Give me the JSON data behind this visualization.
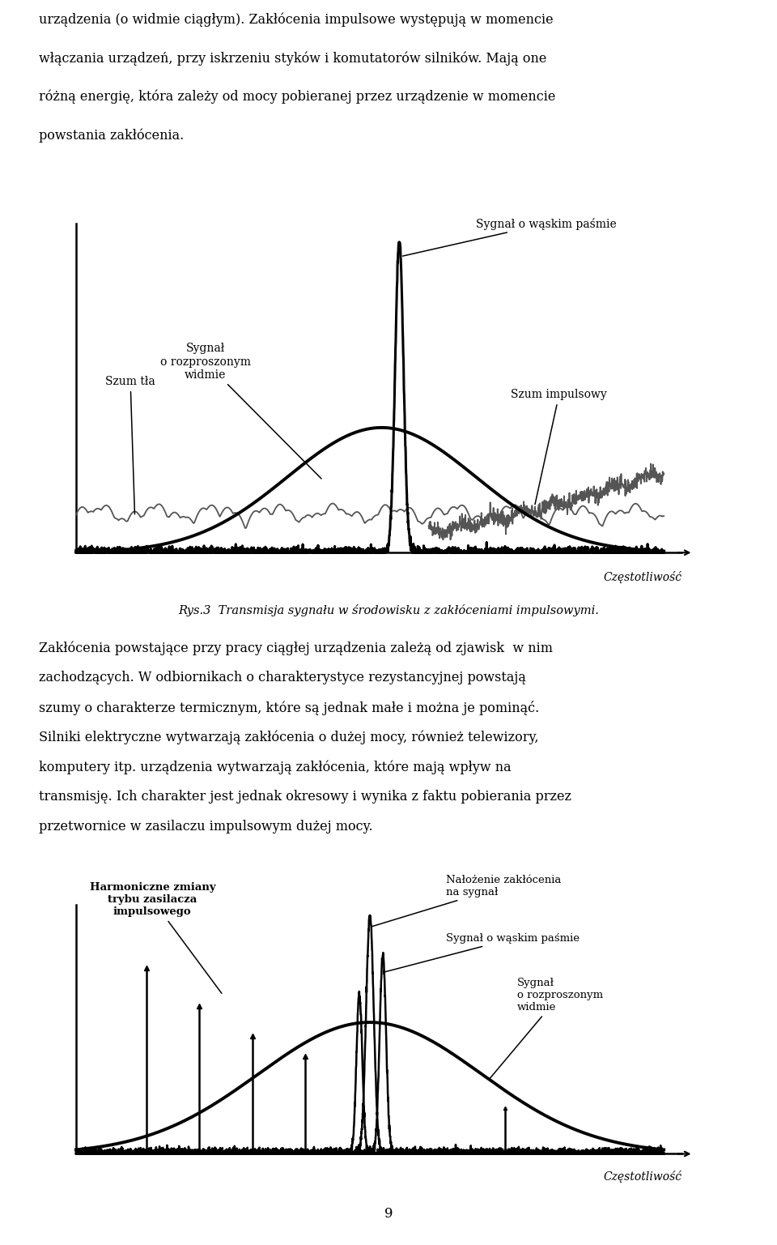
{
  "page_bg": "#ffffff",
  "text_color": "#000000",
  "fig_caption": "Rys.3  Transmisja sygnału w środowisku z zakłóceniami impulsowymi.",
  "page_number": "9",
  "para1": "urządzenia (o widmie ciągłym). Zakłócenia impulsowe występują w momencie włączania urządzeń, przy iskrzeniu styków i komutatorów silników. Mają one różną energię, która zależy od mocy pobieranej przez urządzenie w momencie powstania zakłócenia.",
  "para2": "Zakłócenia powstające przy pracy ciągłej urządzenia zależą od zjawisk  w nim zachodzących. W odbiornikach o charakterystyce rezystancyjnej powstają szumy o charakterze termicznym, które są jednak małe i można je pominąć. Silniki elektryczne wytwarzają zakłócenia o dużej mocy, również telewizory, komputery itp. urządzenia wytwarzają zakłócenia, które mają wpływ na transmisję. Ich charakter jest jednak okresowy i wynika z faktu pobierania przez przetwornice w zasilaczu impulsowym dużej mocy.",
  "d1_szum_tla": "Szum tła",
  "d1_syg_rozp": "Sygnał\no rozproszonym\nwidmie",
  "d1_syg_waski": "Sygnał o wąskim paśmie",
  "d1_szum_imp": "Szum impulsowy",
  "d1_czest": "Częstotliwość",
  "d2_harmoniczne": "Harmoniczne zmiany\ntrybu zasilacza\nimpulsowego",
  "d2_nalozenie": "Nałożenie zakłócenia\nna sygnał",
  "d2_syg_waski": "Sygnał o wąskim paśmie",
  "d2_syg_rozp": "Sygnał\no rozproszonym\nwidmie",
  "d2_czest": "Częstotliwość"
}
